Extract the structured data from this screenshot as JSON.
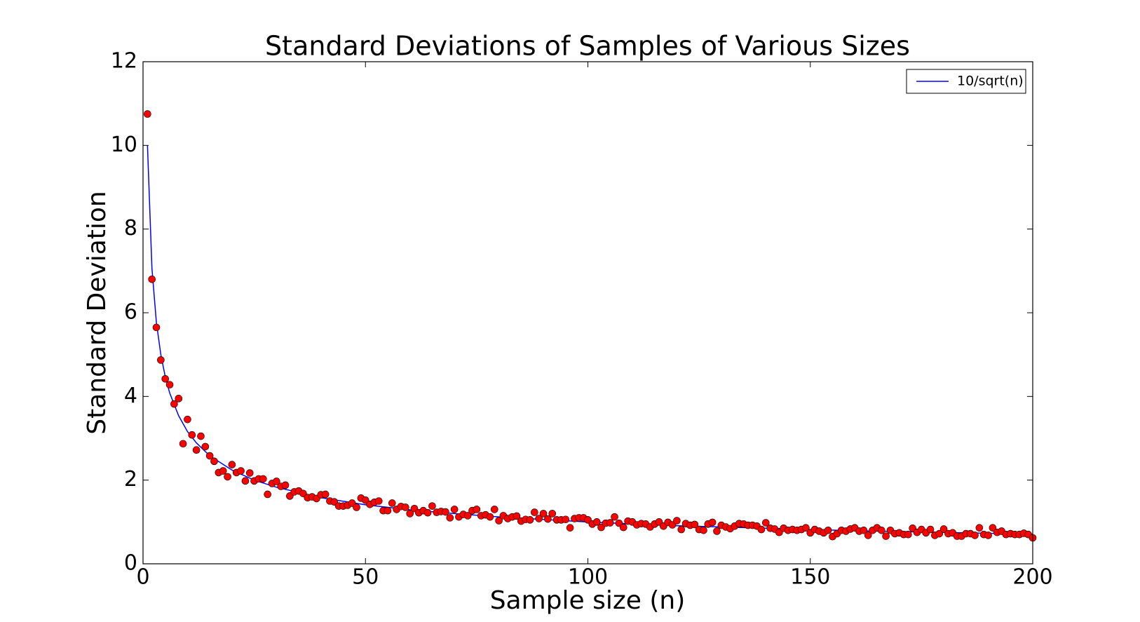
{
  "chart_data": {
    "type": "scatter",
    "title": "Standard Deviations of Samples of Various Sizes",
    "x_label": "Sample size (n)",
    "y_label": "Standard Deviation",
    "xlim": [
      0,
      200
    ],
    "ylim": [
      0,
      12
    ],
    "xticks": [
      0,
      50,
      100,
      150,
      200
    ],
    "yticks": [
      0,
      2,
      4,
      6,
      8,
      10,
      12
    ],
    "grid": false,
    "legend": "upper right",
    "series": [
      {
        "name": "10/sqrt(n)",
        "type": "line",
        "color": "#0000ff",
        "x": [
          1,
          2,
          3,
          4,
          5,
          6,
          8,
          10,
          12,
          15,
          20,
          25,
          30,
          40,
          50,
          60,
          70,
          80,
          100,
          120,
          140,
          160,
          180,
          200
        ],
        "values": [
          10,
          7.07,
          5.77,
          5,
          4.47,
          4.08,
          3.54,
          3.16,
          2.89,
          2.58,
          2.24,
          2,
          1.83,
          1.58,
          1.41,
          1.29,
          1.2,
          1.12,
          1,
          0.91,
          0.85,
          0.79,
          0.75,
          0.71
        ]
      },
      {
        "type": "scatter",
        "color": "#ff0000",
        "x": [
          1,
          2,
          3,
          4,
          5,
          6,
          7,
          8,
          9,
          10,
          11,
          12,
          13,
          14,
          15,
          16,
          17,
          18,
          19,
          20,
          21,
          22,
          23,
          24,
          25,
          26,
          27,
          28,
          29,
          30,
          31,
          32,
          33,
          34,
          35,
          36,
          37,
          38,
          39,
          40,
          41,
          42,
          43,
          44,
          45,
          46,
          47,
          48,
          49,
          50,
          51,
          52,
          53,
          54,
          55,
          56,
          57,
          58,
          59,
          60,
          61,
          62,
          63,
          64,
          65,
          66,
          67,
          68,
          69,
          70,
          71,
          72,
          73,
          74,
          75,
          76,
          77,
          78,
          79,
          80,
          81,
          82,
          83,
          84,
          85,
          86,
          87,
          88,
          89,
          90,
          91,
          92,
          93,
          94,
          95,
          96,
          97,
          98,
          99,
          100,
          101,
          102,
          103,
          104,
          105,
          106,
          107,
          108,
          109,
          110,
          111,
          112,
          113,
          114,
          115,
          116,
          117,
          118,
          119,
          120,
          121,
          122,
          123,
          124,
          125,
          126,
          127,
          128,
          129,
          130,
          131,
          132,
          133,
          134,
          135,
          136,
          137,
          138,
          139,
          140,
          141,
          142,
          143,
          144,
          145,
          146,
          147,
          148,
          149,
          150,
          151,
          152,
          153,
          154,
          155,
          156,
          157,
          158,
          159,
          160,
          161,
          162,
          163,
          164,
          165,
          166,
          167,
          168,
          169,
          170,
          171,
          172,
          173,
          174,
          175,
          176,
          177,
          178,
          179,
          180,
          181,
          182,
          183,
          184,
          185,
          186,
          187,
          188,
          189,
          190,
          191,
          192,
          193,
          194,
          195,
          196,
          197,
          198,
          199,
          200
        ],
        "values": [
          10.75,
          6.8,
          5.65,
          4.87,
          4.42,
          4.28,
          3.82,
          3.95,
          2.87,
          3.45,
          3.08,
          2.72,
          3.05,
          2.8,
          2.58,
          2.45,
          2.18,
          2.22,
          2.08,
          2.37,
          2.18,
          2.22,
          1.98,
          2.17,
          1.98,
          2.03,
          2.03,
          1.66,
          1.92,
          1.97,
          1.85,
          1.88,
          1.62,
          1.72,
          1.74,
          1.68,
          1.58,
          1.6,
          1.56,
          1.65,
          1.66,
          1.5,
          1.48,
          1.38,
          1.38,
          1.4,
          1.45,
          1.35,
          1.57,
          1.52,
          1.42,
          1.47,
          1.5,
          1.27,
          1.27,
          1.45,
          1.3,
          1.37,
          1.35,
          1.2,
          1.32,
          1.22,
          1.27,
          1.22,
          1.38,
          1.23,
          1.25,
          1.24,
          1.1,
          1.3,
          1.12,
          1.18,
          1.15,
          1.27,
          1.3,
          1.15,
          1.17,
          1.12,
          1.3,
          1.03,
          1.15,
          1.08,
          1.12,
          1.14,
          1.02,
          1.06,
          1.05,
          1.23,
          1.08,
          1.2,
          1.07,
          1.2,
          1.05,
          1.05,
          1.06,
          0.86,
          1.08,
          1.1,
          1.1,
          1.05,
          0.95,
          1,
          0.87,
          0.97,
          0.98,
          1.12,
          0.97,
          0.87,
          1.02,
          1,
          0.93,
          0.96,
          0.95,
          0.88,
          0.95,
          1,
          0.9,
          0.99,
          0.93,
          1.03,
          0.82,
          0.96,
          0.92,
          0.94,
          0.82,
          0.8,
          0.95,
          0.99,
          0.78,
          0.92,
          0.88,
          0.84,
          0.9,
          0.96,
          0.95,
          0.92,
          0.92,
          0.9,
          0.82,
          0.98,
          0.85,
          0.83,
          0.75,
          0.85,
          0.8,
          0.82,
          0.8,
          0.82,
          0.86,
          0.74,
          0.82,
          0.78,
          0.74,
          0.8,
          0.65,
          0.72,
          0.8,
          0.78,
          0.83,
          0.86,
          0.78,
          0.8,
          0.68,
          0.8,
          0.86,
          0.8,
          0.66,
          0.8,
          0.72,
          0.74,
          0.7,
          0.7,
          0.85,
          0.75,
          0.82,
          0.74,
          0.82,
          0.68,
          0.72,
          0.83,
          0.72,
          0.74,
          0.66,
          0.66,
          0.72,
          0.72,
          0.68,
          0.86,
          0.7,
          0.68,
          0.86,
          0.75,
          0.78,
          0.7,
          0.72,
          0.7,
          0.7,
          0.73,
          0.7,
          0.62
        ]
      }
    ]
  }
}
